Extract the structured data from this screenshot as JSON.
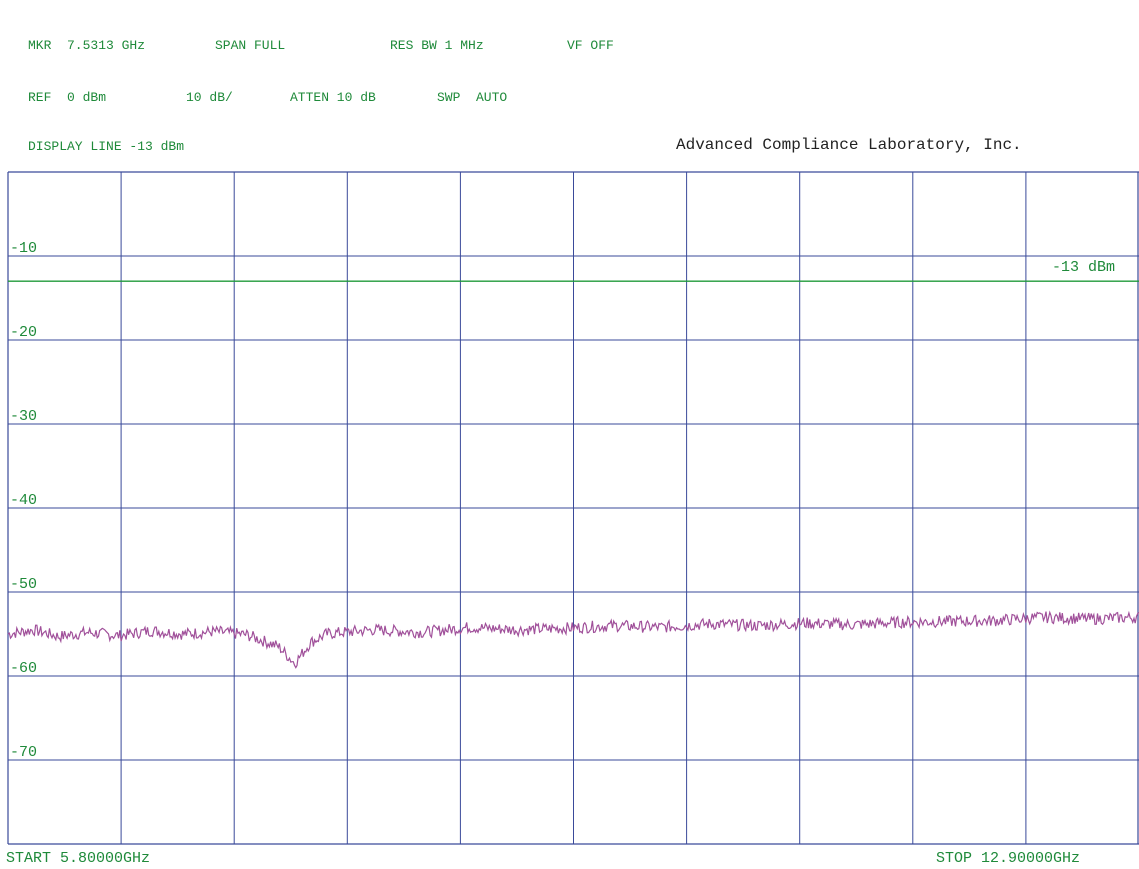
{
  "header": {
    "row1": {
      "marker": "MKR  7.5313 GHz",
      "span": "SPAN FULL",
      "res_bw": "RES BW 1 MHz",
      "vf": "VF OFF"
    },
    "row2": {
      "ref": "REF  0 dBm",
      "scale": "10 dB/",
      "atten": "ATTEN 10 dB",
      "sweep": "SWP  AUTO"
    },
    "row3": {
      "display_line": "DISPLAY LINE -13 dBm"
    },
    "lab_name": "Advanced Compliance Laboratory, Inc."
  },
  "footer": {
    "start": "START 5.80000GHz",
    "stop": "STOP 12.90000GHz"
  },
  "colors": {
    "grid": "#3a4a9a",
    "trace": "#a0509a",
    "display_line": "#1f9a3a",
    "text": "#1f8a3a"
  },
  "chart_data": {
    "type": "line",
    "title": "",
    "xlabel": "",
    "ylabel": "",
    "x_unit": "GHz",
    "y_unit": "dBm",
    "xlim": [
      5.8,
      12.9
    ],
    "ylim": [
      -80,
      0
    ],
    "y_ticks": [
      -10,
      -20,
      -30,
      -40,
      -50,
      -60,
      -70
    ],
    "y_tick_labels": [
      "-10",
      "-20",
      "-30",
      "-40",
      "-50",
      "-60",
      "-70"
    ],
    "grid": true,
    "display_line": {
      "value": -13,
      "label": "-13 dBm"
    },
    "series": [
      {
        "x": [
          5.8,
          5.96,
          6.12,
          6.3,
          6.5,
          6.7,
          6.9,
          7.1,
          7.3,
          7.5,
          7.6,
          7.7,
          7.8,
          7.9,
          8.1,
          8.4,
          8.7,
          9.0,
          9.3,
          9.6,
          9.9,
          10.2,
          10.5,
          10.8,
          11.1,
          11.4,
          11.7,
          12.0,
          12.3,
          12.6,
          12.9
        ],
        "y": [
          -55,
          -54.5,
          -55.3,
          -54.8,
          -55.2,
          -54.6,
          -55,
          -54.7,
          -55.1,
          -56.5,
          -58.5,
          -56,
          -55,
          -54.8,
          -54.5,
          -54.8,
          -54.2,
          -54.5,
          -54.3,
          -54.0,
          -54.2,
          -53.8,
          -54.0,
          -53.7,
          -53.9,
          -53.6,
          -53.5,
          -53.4,
          -53.0,
          -53.2,
          -53.0
        ]
      }
    ]
  }
}
